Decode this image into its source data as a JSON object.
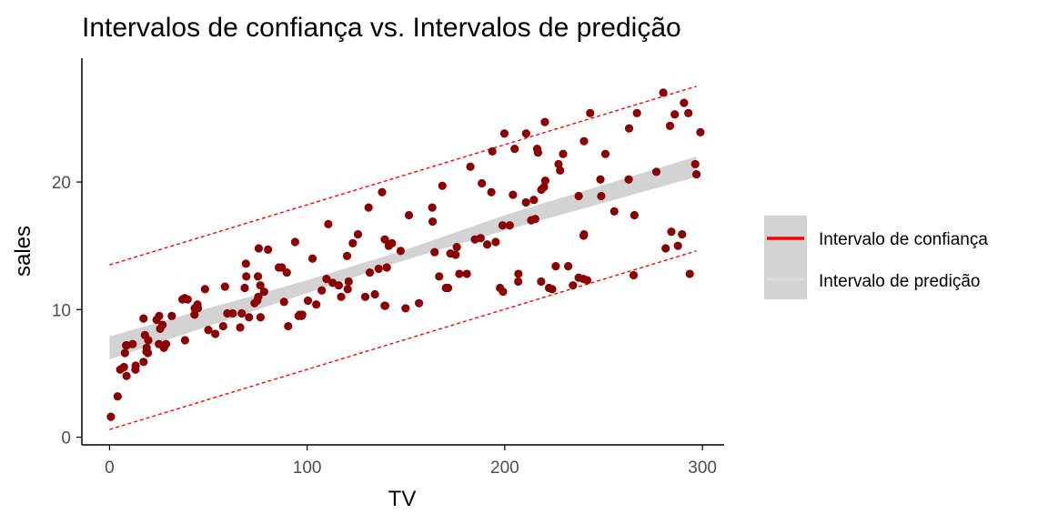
{
  "chart_data": {
    "type": "scatter",
    "title": "Intervalos de confiança vs. Intervalos de predição",
    "xlabel": "TV",
    "ylabel": "sales",
    "xlim": [
      -14,
      311
    ],
    "ylim": [
      -0.6,
      29.7
    ],
    "x_ticks": [
      0,
      100,
      200,
      300
    ],
    "y_ticks": [
      0,
      10,
      20
    ],
    "grid": false,
    "legend_position": "right",
    "legend": [
      {
        "label": "Intervalo de confiança",
        "color": "#ff0000"
      },
      {
        "label": "Intervalo de predição",
        "color": "#d3d3d3"
      }
    ],
    "colors": {
      "points": "#8b0000",
      "confidence_line": "#ff0000",
      "band": "#d3d3d3",
      "prediction_line": "#ff0000"
    },
    "regression": {
      "intercept": 7.03,
      "slope": 0.0475
    },
    "confidence_band": {
      "x": [
        0,
        100,
        150,
        200,
        297
      ],
      "lower": [
        6.1,
        11.3,
        13.9,
        16.2,
        20.4
      ],
      "upper": [
        7.9,
        12.3,
        14.7,
        17.4,
        22.0
      ]
    },
    "prediction_interval": {
      "x": [
        0,
        297
      ],
      "lower": [
        0.6,
        14.6
      ],
      "upper": [
        13.5,
        27.5
      ]
    },
    "points": [
      [
        0.7,
        1.6
      ],
      [
        4.1,
        3.2
      ],
      [
        5.4,
        5.3
      ],
      [
        7.3,
        5.5
      ],
      [
        7.8,
        6.6
      ],
      [
        8.4,
        7.2
      ],
      [
        8.6,
        4.8
      ],
      [
        8.7,
        7.2
      ],
      [
        11.7,
        7.3
      ],
      [
        13.1,
        5.3
      ],
      [
        13.2,
        5.6
      ],
      [
        17.2,
        5.9
      ],
      [
        17.2,
        9.3
      ],
      [
        17.9,
        8.0
      ],
      [
        18.7,
        6.7
      ],
      [
        18.8,
        7.0
      ],
      [
        19.4,
        6.6
      ],
      [
        19.6,
        7.6
      ],
      [
        23.8,
        9.2
      ],
      [
        25.0,
        7.3
      ],
      [
        25.1,
        9.5
      ],
      [
        25.6,
        8.5
      ],
      [
        26.8,
        8.8
      ],
      [
        27.5,
        7.0
      ],
      [
        28.6,
        7.3
      ],
      [
        31.5,
        9.5
      ],
      [
        36.9,
        10.8
      ],
      [
        38.0,
        10.9
      ],
      [
        38.2,
        7.6
      ],
      [
        39.5,
        10.8
      ],
      [
        43.0,
        9.6
      ],
      [
        43.1,
        10.1
      ],
      [
        44.5,
        10.4
      ],
      [
        44.7,
        10.1
      ],
      [
        48.3,
        11.6
      ],
      [
        50.0,
        8.4
      ],
      [
        53.5,
        8.1
      ],
      [
        57.5,
        8.7
      ],
      [
        58.4,
        11.8
      ],
      [
        59.6,
        9.7
      ],
      [
        62.3,
        9.7
      ],
      [
        66.1,
        8.6
      ],
      [
        66.9,
        9.7
      ],
      [
        68.4,
        11.7
      ],
      [
        69.0,
        13.6
      ],
      [
        69.2,
        12.6
      ],
      [
        70.6,
        9.4
      ],
      [
        73.4,
        10.5
      ],
      [
        74.7,
        10.7
      ],
      [
        75.1,
        12.6
      ],
      [
        75.3,
        11.0
      ],
      [
        75.5,
        14.8
      ],
      [
        76.3,
        11.9
      ],
      [
        76.4,
        9.4
      ],
      [
        78.2,
        11.4
      ],
      [
        80.2,
        14.7
      ],
      [
        85.7,
        13.3
      ],
      [
        87.2,
        13.3
      ],
      [
        88.3,
        10.6
      ],
      [
        89.7,
        12.9
      ],
      [
        90.4,
        8.7
      ],
      [
        93.9,
        15.3
      ],
      [
        95.7,
        9.5
      ],
      [
        96.2,
        9.6
      ],
      [
        97.2,
        9.5
      ],
      [
        97.5,
        9.6
      ],
      [
        100.4,
        10.7
      ],
      [
        102.7,
        14.0
      ],
      [
        104.6,
        10.4
      ],
      [
        107.4,
        11.5
      ],
      [
        109.8,
        12.4
      ],
      [
        110.7,
        16.7
      ],
      [
        112.9,
        12.1
      ],
      [
        116.0,
        11.9
      ],
      [
        117.2,
        11.0
      ],
      [
        120.2,
        14.2
      ],
      [
        120.5,
        11.6
      ],
      [
        121.0,
        12.2
      ],
      [
        123.1,
        15.2
      ],
      [
        125.7,
        15.9
      ],
      [
        129.4,
        11.0
      ],
      [
        131.1,
        18.0
      ],
      [
        131.7,
        12.9
      ],
      [
        134.3,
        11.2
      ],
      [
        136.2,
        13.2
      ],
      [
        137.9,
        19.2
      ],
      [
        139.2,
        10.3
      ],
      [
        139.3,
        15.5
      ],
      [
        139.5,
        10.3
      ],
      [
        140.3,
        13.3
      ],
      [
        141.3,
        15.0
      ],
      [
        142.9,
        15.2
      ],
      [
        147.3,
        14.6
      ],
      [
        149.8,
        10.1
      ],
      [
        151.5,
        17.4
      ],
      [
        156.6,
        10.5
      ],
      [
        163.3,
        18.0
      ],
      [
        163.5,
        16.9
      ],
      [
        164.5,
        14.5
      ],
      [
        166.8,
        12.6
      ],
      [
        168.4,
        19.7
      ],
      [
        170.2,
        11.7
      ],
      [
        171.3,
        11.7
      ],
      [
        172.5,
        14.4
      ],
      [
        175.1,
        14.3
      ],
      [
        175.7,
        14.9
      ],
      [
        177.0,
        12.8
      ],
      [
        180.8,
        12.8
      ],
      [
        182.6,
        21.2
      ],
      [
        184.9,
        15.5
      ],
      [
        187.8,
        15.6
      ],
      [
        188.4,
        19.9
      ],
      [
        191.1,
        15.1
      ],
      [
        193.2,
        19.2
      ],
      [
        193.7,
        22.4
      ],
      [
        195.4,
        15.3
      ],
      [
        197.6,
        11.7
      ],
      [
        198.9,
        16.6
      ],
      [
        199.1,
        11.4
      ],
      [
        199.8,
        23.8
      ],
      [
        202.5,
        16.6
      ],
      [
        204.1,
        19.0
      ],
      [
        205.0,
        22.6
      ],
      [
        206.8,
        12.2
      ],
      [
        206.9,
        12.8
      ],
      [
        210.7,
        18.4
      ],
      [
        210.8,
        23.8
      ],
      [
        213.4,
        17.0
      ],
      [
        214.7,
        18.6
      ],
      [
        215.4,
        17.1
      ],
      [
        216.4,
        22.6
      ],
      [
        216.8,
        22.3
      ],
      [
        218.4,
        12.2
      ],
      [
        218.5,
        19.4
      ],
      [
        219.8,
        19.6
      ],
      [
        220.3,
        24.7
      ],
      [
        220.5,
        20.1
      ],
      [
        222.4,
        11.7
      ],
      [
        224.0,
        11.6
      ],
      [
        225.8,
        13.4
      ],
      [
        227.2,
        21.4
      ],
      [
        228.0,
        20.9
      ],
      [
        229.5,
        22.2
      ],
      [
        232.1,
        13.4
      ],
      [
        234.5,
        11.9
      ],
      [
        237.4,
        12.5
      ],
      [
        237.4,
        18.9
      ],
      [
        239.8,
        12.4
      ],
      [
        239.9,
        15.8
      ],
      [
        240.1,
        23.2
      ],
      [
        240.1,
        15.9
      ],
      [
        241.7,
        12.3
      ],
      [
        243.2,
        25.4
      ],
      [
        248.4,
        20.2
      ],
      [
        248.8,
        18.9
      ],
      [
        250.9,
        22.2
      ],
      [
        255.4,
        17.7
      ],
      [
        262.7,
        20.2
      ],
      [
        262.9,
        24.2
      ],
      [
        265.2,
        12.7
      ],
      [
        265.6,
        17.4
      ],
      [
        266.9,
        25.4
      ],
      [
        276.7,
        20.8
      ],
      [
        280.2,
        27.0
      ],
      [
        281.4,
        14.8
      ],
      [
        283.6,
        24.4
      ],
      [
        284.3,
        16.1
      ],
      [
        286.0,
        25.3
      ],
      [
        287.6,
        15.0
      ],
      [
        289.7,
        15.9
      ],
      [
        290.7,
        26.2
      ],
      [
        292.9,
        25.4
      ],
      [
        293.6,
        12.8
      ],
      [
        296.4,
        21.4
      ],
      [
        297.0,
        20.6
      ],
      [
        299.0,
        23.9
      ]
    ]
  }
}
